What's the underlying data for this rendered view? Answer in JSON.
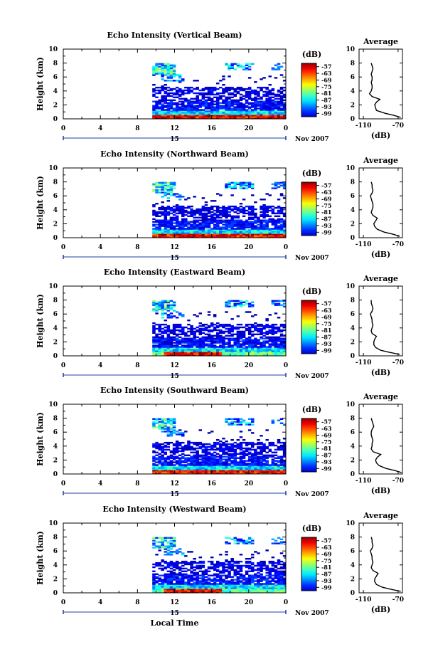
{
  "common": {
    "ylabel": "Height (km)",
    "avg_title": "Average",
    "avg_xlabel": "(dB)",
    "colorbar_unit": "(dB)",
    "date_day": "15",
    "date_label": "Nov 2007",
    "bottom_xlabel": "Local Time"
  },
  "chart_data": [
    {
      "type": "heatmap",
      "title": "Echo Intensity (Vertical Beam)",
      "x_ticks": [
        "0",
        "4",
        "8",
        "12",
        "16",
        "20",
        "0"
      ],
      "y_ticks": [
        "0",
        "2",
        "4",
        "6",
        "8",
        "10"
      ],
      "xlim": [
        0,
        24
      ],
      "ylim": [
        0,
        10
      ],
      "data_start_hour": 9.6,
      "colorbar_ticks": [
        "-57",
        "-63",
        "-69",
        "-75",
        "-81",
        "-87",
        "-93",
        "-99"
      ],
      "colorbar_range": [
        -102,
        -54
      ],
      "profile": {
        "x_ticks": [
          "-110",
          "-70"
        ],
        "y_ticks": [
          "0",
          "2",
          "4",
          "6",
          "8",
          "10"
        ],
        "xlim": [
          -115,
          -65
        ],
        "height_km": [
          0.2,
          0.5,
          0.8,
          1.2,
          1.6,
          2.0,
          2.4,
          2.8,
          3.2,
          3.6,
          4.0,
          4.4,
          4.8,
          5.2,
          5.6,
          6.0,
          6.4,
          6.8,
          7.2,
          7.6,
          8.0
        ],
        "db": [
          -67,
          -75,
          -85,
          -95,
          -96,
          -97,
          -95,
          -91,
          -100,
          -103,
          -101,
          -100,
          -100,
          -101,
          -100,
          -100,
          -101,
          -100,
          -99,
          -100,
          -101
        ]
      }
    },
    {
      "type": "heatmap",
      "title": "Echo Intensity (Northward Beam)",
      "x_ticks": [
        "0",
        "4",
        "8",
        "12",
        "16",
        "20",
        "0"
      ],
      "y_ticks": [
        "0",
        "2",
        "4",
        "6",
        "8",
        "10"
      ],
      "xlim": [
        0,
        24
      ],
      "ylim": [
        0,
        10
      ],
      "data_start_hour": 9.6,
      "colorbar_ticks": [
        "-57",
        "-63",
        "-69",
        "-75",
        "-81",
        "-87",
        "-93",
        "-99"
      ],
      "colorbar_range": [
        -102,
        -54
      ],
      "profile": {
        "x_ticks": [
          "-110",
          "-70"
        ],
        "y_ticks": [
          "0",
          "2",
          "4",
          "6",
          "8",
          "10"
        ],
        "xlim": [
          -115,
          -65
        ],
        "height_km": [
          0.2,
          0.5,
          0.8,
          1.2,
          1.6,
          2.0,
          2.4,
          2.8,
          3.2,
          3.6,
          4.0,
          4.4,
          4.8,
          5.2,
          5.6,
          6.0,
          6.4,
          6.8,
          7.2,
          7.6,
          8.0
        ],
        "db": [
          -68,
          -76,
          -86,
          -94,
          -97,
          -98,
          -96,
          -94,
          -99,
          -101,
          -100,
          -99,
          -99,
          -100,
          -101,
          -102,
          -100,
          -99,
          -100,
          -100,
          -101
        ]
      }
    },
    {
      "type": "heatmap",
      "title": "Echo Intensity (Eastward Beam)",
      "x_ticks": [
        "0",
        "4",
        "8",
        "12",
        "16",
        "20",
        "0"
      ],
      "y_ticks": [
        "0",
        "2",
        "4",
        "6",
        "8",
        "10"
      ],
      "xlim": [
        0,
        24
      ],
      "ylim": [
        0,
        10
      ],
      "data_start_hour": 9.6,
      "colorbar_ticks": [
        "-57",
        "-63",
        "-69",
        "-75",
        "-81",
        "-87",
        "-93",
        "-99"
      ],
      "colorbar_range": [
        -102,
        -54
      ],
      "profile": {
        "x_ticks": [
          "-110",
          "-70"
        ],
        "y_ticks": [
          "0",
          "2",
          "4",
          "6",
          "8",
          "10"
        ],
        "xlim": [
          -115,
          -65
        ],
        "height_km": [
          0.2,
          0.5,
          0.8,
          1.2,
          1.6,
          2.0,
          2.4,
          2.8,
          3.2,
          3.6,
          4.0,
          4.4,
          4.8,
          5.2,
          5.6,
          6.0,
          6.4,
          6.8,
          7.2,
          7.6,
          8.0
        ],
        "db": [
          -68,
          -80,
          -90,
          -96,
          -98,
          -98,
          -97,
          -95,
          -100,
          -101,
          -100,
          -99,
          -100,
          -100,
          -101,
          -102,
          -100,
          -99,
          -100,
          -101,
          -101
        ]
      }
    },
    {
      "type": "heatmap",
      "title": "Echo Intensity (Southward Beam)",
      "x_ticks": [
        "0",
        "4",
        "8",
        "12",
        "16",
        "20",
        "0"
      ],
      "y_ticks": [
        "0",
        "2",
        "4",
        "6",
        "8",
        "10"
      ],
      "xlim": [
        0,
        24
      ],
      "ylim": [
        0,
        10
      ],
      "data_start_hour": 9.6,
      "colorbar_ticks": [
        "-57",
        "-63",
        "-69",
        "-75",
        "-81",
        "-87",
        "-93",
        "-99"
      ],
      "colorbar_range": [
        -102,
        -54
      ],
      "profile": {
        "x_ticks": [
          "-110",
          "-70"
        ],
        "y_ticks": [
          "0",
          "2",
          "4",
          "6",
          "8",
          "10"
        ],
        "xlim": [
          -115,
          -65
        ],
        "height_km": [
          0.2,
          0.5,
          0.8,
          1.2,
          1.6,
          2.0,
          2.4,
          2.8,
          3.2,
          3.6,
          4.0,
          4.4,
          4.8,
          5.2,
          5.6,
          6.0,
          6.4,
          6.8,
          7.2,
          7.6,
          8.0
        ],
        "db": [
          -66,
          -74,
          -84,
          -92,
          -95,
          -96,
          -94,
          -90,
          -99,
          -101,
          -100,
          -100,
          -99,
          -100,
          -101,
          -101,
          -100,
          -98,
          -99,
          -100,
          -101
        ]
      }
    },
    {
      "type": "heatmap",
      "title": "Echo Intensity (Westward Beam)",
      "x_ticks": [
        "0",
        "4",
        "8",
        "12",
        "16",
        "20",
        "0"
      ],
      "y_ticks": [
        "0",
        "2",
        "4",
        "6",
        "8",
        "10"
      ],
      "xlim": [
        0,
        24
      ],
      "ylim": [
        0,
        10
      ],
      "data_start_hour": 9.6,
      "colorbar_ticks": [
        "-57",
        "-63",
        "-69",
        "-75",
        "-81",
        "-87",
        "-93",
        "-99"
      ],
      "colorbar_range": [
        -102,
        -54
      ],
      "profile": {
        "x_ticks": [
          "-110",
          "-70"
        ],
        "y_ticks": [
          "0",
          "2",
          "4",
          "6",
          "8",
          "10"
        ],
        "xlim": [
          -115,
          -65
        ],
        "height_km": [
          0.2,
          0.5,
          0.8,
          1.2,
          1.6,
          2.0,
          2.4,
          2.8,
          3.2,
          3.6,
          4.0,
          4.4,
          4.8,
          5.2,
          5.6,
          6.0,
          6.4,
          6.8,
          7.2,
          7.6,
          8.0
        ],
        "db": [
          -67,
          -78,
          -88,
          -95,
          -97,
          -97,
          -95,
          -93,
          -99,
          -101,
          -100,
          -99,
          -100,
          -100,
          -101,
          -102,
          -100,
          -99,
          -100,
          -100,
          -101
        ]
      }
    }
  ]
}
